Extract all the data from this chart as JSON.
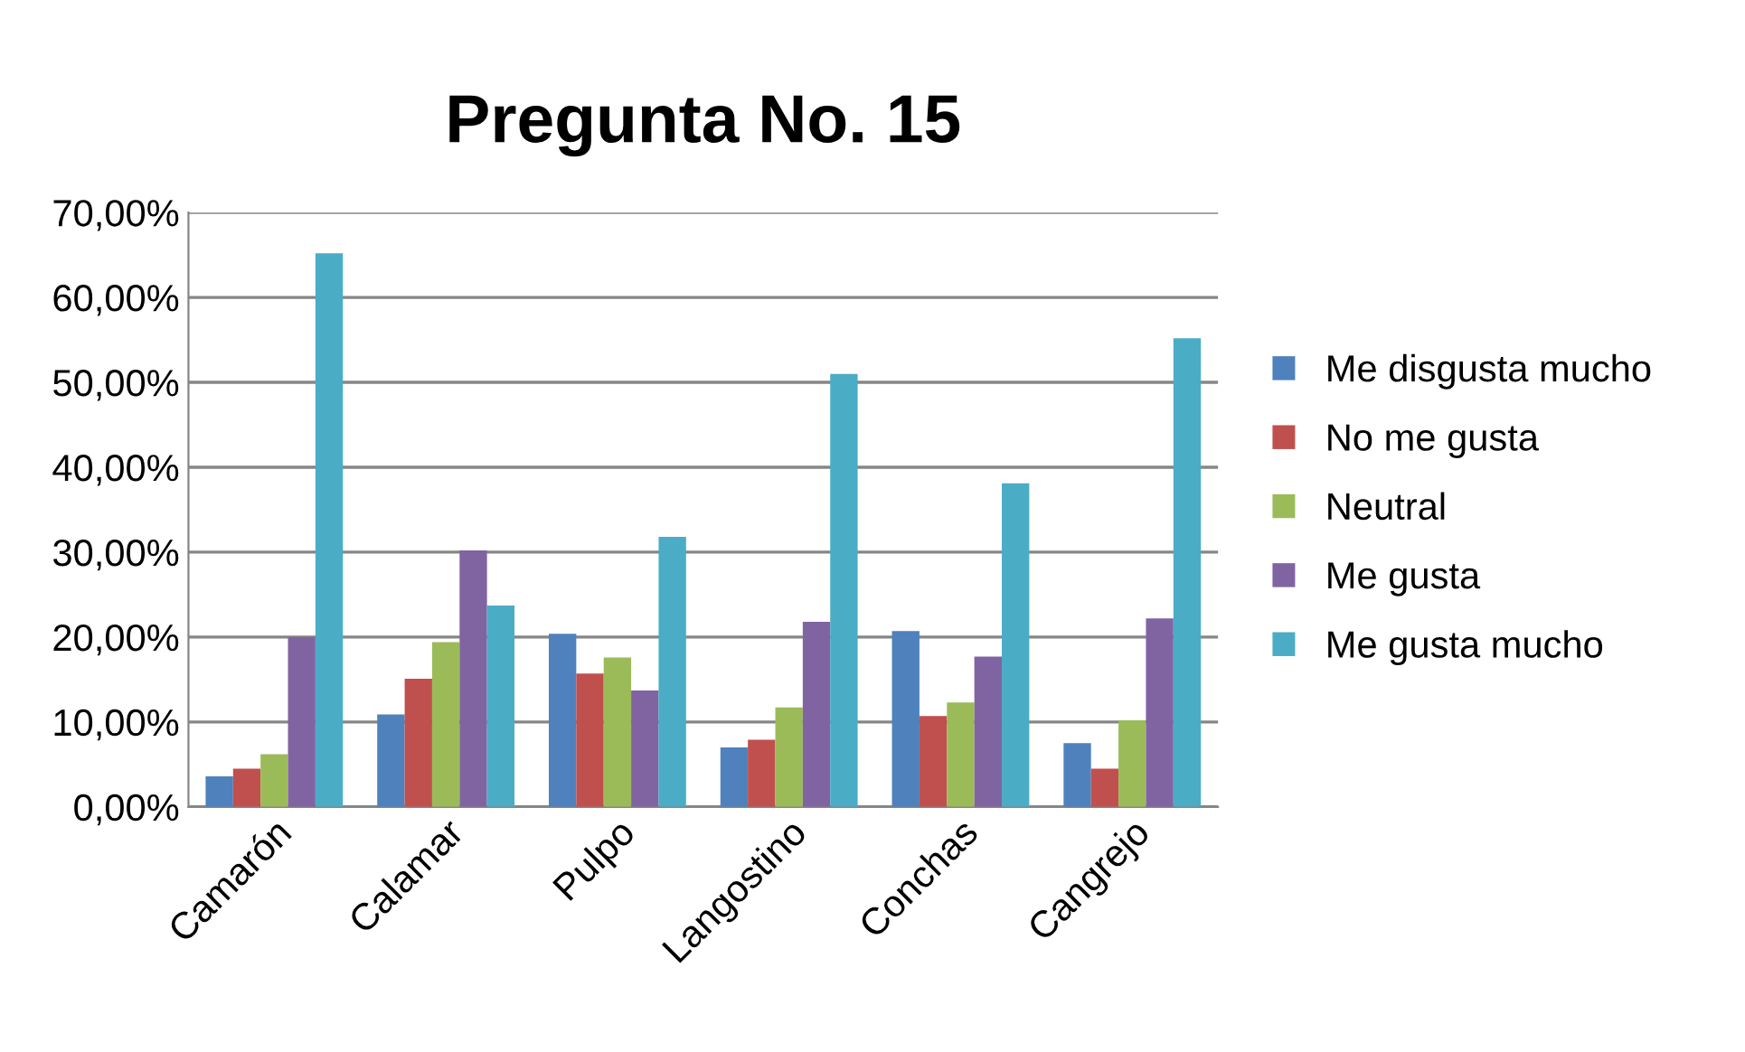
{
  "chart_data": {
    "type": "bar",
    "title": "Pregunta No. 15",
    "categories": [
      "Camarón",
      "Calamar",
      "Pulpo",
      "Langostino",
      "Conchas",
      "Cangrejo"
    ],
    "series": [
      {
        "name": "Me disgusta mucho",
        "color": "#4f81bd",
        "values": [
          3.6,
          10.9,
          20.4,
          7.0,
          20.7,
          7.5
        ]
      },
      {
        "name": "No me gusta",
        "color": "#c0504d",
        "values": [
          4.5,
          15.1,
          15.7,
          7.9,
          10.7,
          4.5
        ]
      },
      {
        "name": "Neutral",
        "color": "#9bbb59",
        "values": [
          6.2,
          19.4,
          17.6,
          11.7,
          12.3,
          10.2
        ]
      },
      {
        "name": "Me gusta",
        "color": "#8064a2",
        "values": [
          20.0,
          30.2,
          13.7,
          21.8,
          17.7,
          22.2
        ]
      },
      {
        "name": "Me gusta mucho",
        "color": "#4bacc6",
        "values": [
          65.2,
          23.7,
          31.8,
          51.0,
          38.1,
          55.2
        ]
      }
    ],
    "ylim": [
      0,
      70
    ],
    "yticks": [
      {
        "value": 0,
        "label": "0,00%"
      },
      {
        "value": 10,
        "label": "10,00%"
      },
      {
        "value": 20,
        "label": "20,00%"
      },
      {
        "value": 30,
        "label": "30,00%"
      },
      {
        "value": 40,
        "label": "40,00%"
      },
      {
        "value": 50,
        "label": "50,00%"
      },
      {
        "value": 60,
        "label": "60,00%"
      },
      {
        "value": 70,
        "label": "70,00%"
      }
    ],
    "grid": "y",
    "legend": "right"
  }
}
